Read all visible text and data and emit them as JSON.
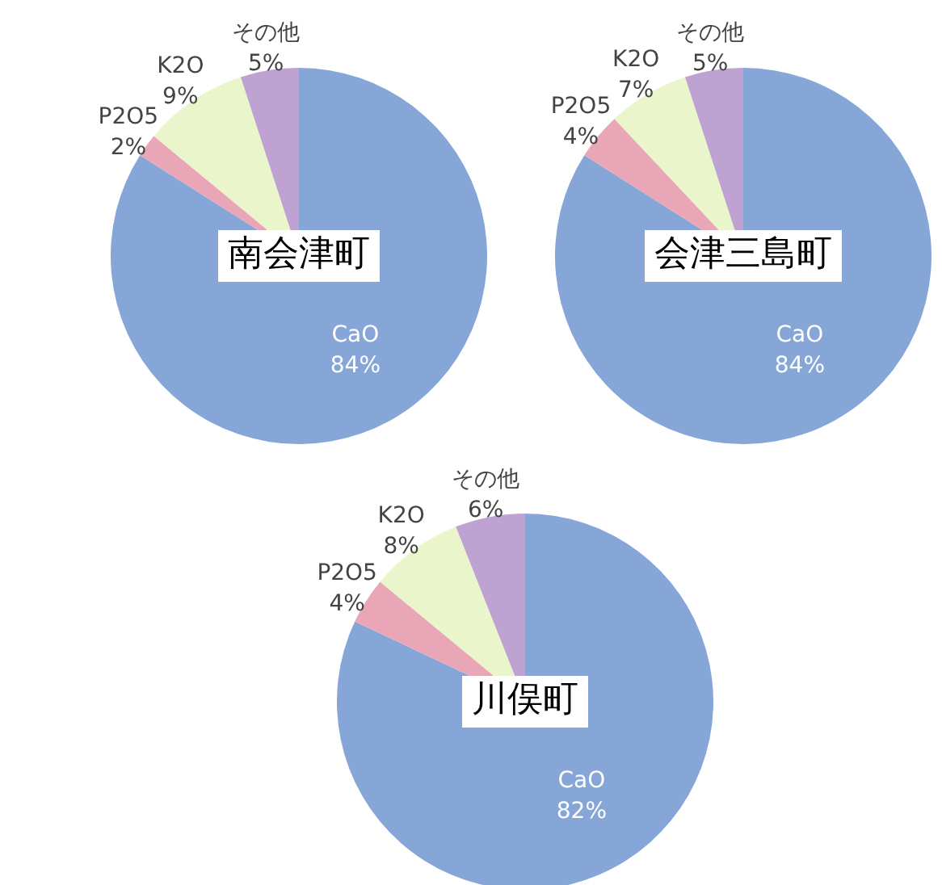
{
  "chart_data": [
    {
      "type": "pie",
      "title": "南会津町",
      "categories": [
        "CaO",
        "P2O5",
        "K2O",
        "その他"
      ],
      "values": [
        84,
        2,
        9,
        5
      ],
      "value_labels": [
        "84%",
        "2%",
        "9%",
        "5%"
      ],
      "colors": [
        "#86a6d8",
        "#e9a6b6",
        "#eaf5cc",
        "#bea2d2"
      ]
    },
    {
      "type": "pie",
      "title": "会津三島町",
      "categories": [
        "CaO",
        "P2O5",
        "K2O",
        "その他"
      ],
      "values": [
        84,
        4,
        7,
        5
      ],
      "value_labels": [
        "84%",
        "4%",
        "7%",
        "5%"
      ],
      "colors": [
        "#86a6d8",
        "#e9a6b6",
        "#eaf5cc",
        "#bea2d2"
      ]
    },
    {
      "type": "pie",
      "title": "川俣町",
      "categories": [
        "CaO",
        "P2O5",
        "K2O",
        "その他"
      ],
      "values": [
        82,
        4,
        8,
        6
      ],
      "value_labels": [
        "82%",
        "4%",
        "8%",
        "6%"
      ],
      "colors": [
        "#86a6d8",
        "#e9a6b6",
        "#eaf5cc",
        "#bea2d2"
      ]
    }
  ]
}
